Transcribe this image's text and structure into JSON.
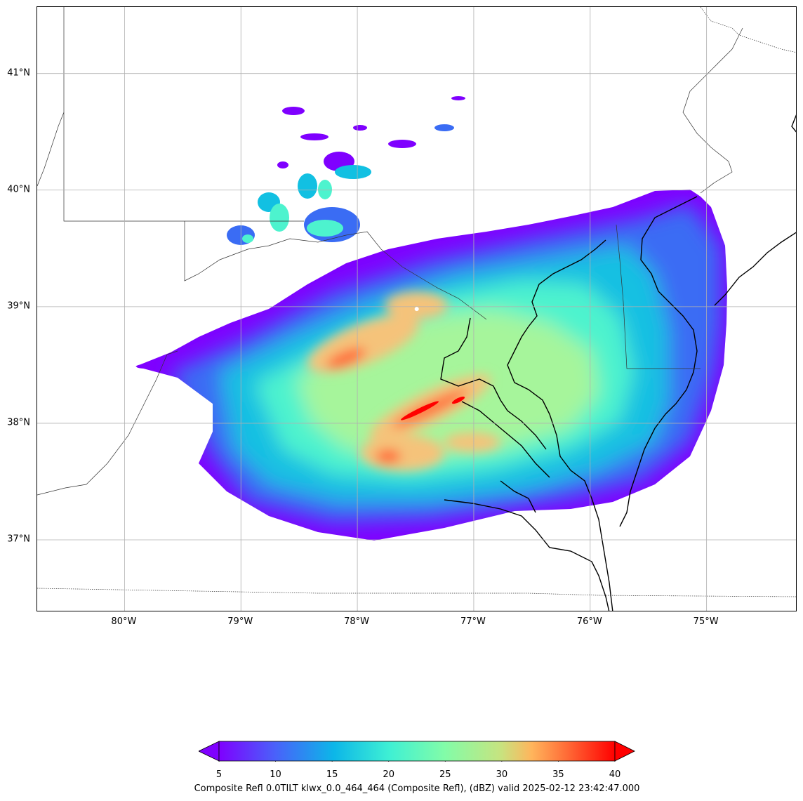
{
  "map": {
    "latitude_labels": [
      "41°N",
      "40°N",
      "39°N",
      "38°N",
      "37°N"
    ],
    "longitude_labels": [
      "80°W",
      "79°W",
      "78°W",
      "77°W",
      "76°W",
      "75°W"
    ],
    "extent": {
      "lon_min": -80.75,
      "lon_max": -74.22,
      "lat_min": 36.38,
      "lat_max": 41.57
    },
    "radar_site": {
      "name": "klwx",
      "lon": -77.49,
      "lat": 38.98
    },
    "layers": [
      "reflectivity-field",
      "coastline",
      "state-borders",
      "graticule"
    ]
  },
  "colorbar": {
    "ticks": [
      "5",
      "10",
      "15",
      "20",
      "25",
      "30",
      "35",
      "40"
    ],
    "vmin": 5,
    "vmax": 40,
    "extend": "both",
    "colormap": "rainbow",
    "caption": "Composite Refl 0.0TILT klwx_0.0_464_464 (Composite Refl), (dBZ) valid 2025-02-12 23:42:47.000"
  },
  "colors": {
    "low": "#7f00ff",
    "blue": "#3a6cf4",
    "cyan": "#12c0e2",
    "aqua": "#4df3ce",
    "green": "#a6f59b",
    "tan": "#f5c37a",
    "orange": "#ff6b39",
    "red": "#ff0000",
    "grid": "#b0b0b0",
    "coast": "#000000"
  }
}
